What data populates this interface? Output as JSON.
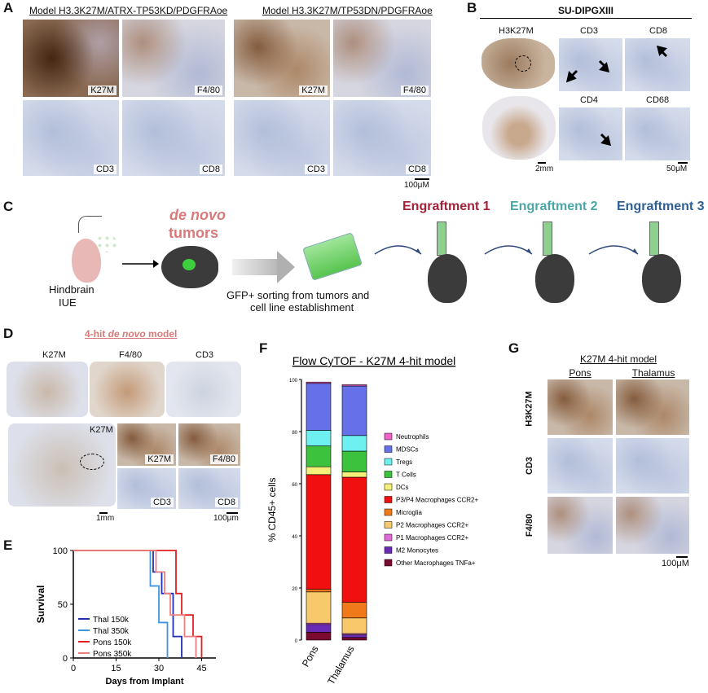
{
  "panel_labels": {
    "A": "A",
    "B": "B",
    "C": "C",
    "D": "D",
    "E": "E",
    "F": "F",
    "G": "G"
  },
  "panelA": {
    "model1_title": "Model H3.3K27M/ATRX-TP53KD/PDGFRAoe",
    "model2_title": "Model H3.3K27M/TP53DN/PDGFRAoe",
    "tiles": [
      "K27M",
      "F4/80",
      "CD3",
      "CD8",
      "K27M",
      "F4/80",
      "CD3",
      "CD8"
    ],
    "scale": "100μM"
  },
  "panelB": {
    "title": "SU-DIPGXIII",
    "labels": {
      "h3k27m": "H3K27M",
      "cd3": "CD3",
      "cd8": "CD8",
      "cd4": "CD4",
      "cd68": "CD68"
    },
    "scale_left": "2mm",
    "scale_right": "50μM"
  },
  "panelC": {
    "hindbrain": "Hindbrain",
    "iue": "IUE",
    "de_novo": "de novo",
    "tumors": "tumors",
    "sorting_line1": "GFP+ sorting from tumors and",
    "sorting_line2": "cell line establishment",
    "engraft1": "Engraftment 1",
    "engraft2": "Engraftment 2",
    "engraft3": "Engraftment 3",
    "colors": {
      "engraft1": "#a3213a",
      "engraft2": "#4aa7a6",
      "engraft3": "#2f5f95",
      "de_novo": "#d97a7a"
    }
  },
  "panelD": {
    "title_prefix": "4-hit ",
    "title_italic": "de novo",
    "title_suffix": " model",
    "top_labels": [
      "K27M",
      "F4/80",
      "CD3"
    ],
    "bottom_big_label": "K27M",
    "tiles": [
      "K27M",
      "F4/80",
      "CD3",
      "CD8"
    ],
    "scale_left": "1mm",
    "scale_right": "100μm"
  },
  "panelG": {
    "title": "K27M 4-hit model",
    "col_labels": [
      "Pons",
      "Thalamus"
    ],
    "row_labels": [
      "H3K27M",
      "CD3",
      "F4/80"
    ],
    "scale": "100μM"
  },
  "chart_data": [
    {
      "type": "line",
      "title": "",
      "xlabel": "Days from Implant",
      "ylabel": "Survival",
      "xlim": [
        0,
        50
      ],
      "ylim": [
        0,
        100
      ],
      "xticks": [
        0,
        15,
        30,
        45
      ],
      "yticks": [
        0,
        50,
        100
      ],
      "legend_position": "left",
      "series": [
        {
          "name": "Thal 150k",
          "color": "#1f2fb3",
          "x": [
            0,
            28,
            28,
            31,
            31,
            35,
            35,
            38,
            38
          ],
          "y": [
            100,
            100,
            80,
            80,
            60,
            60,
            20,
            20,
            0
          ]
        },
        {
          "name": "Thal 350k",
          "color": "#3d96e0",
          "x": [
            0,
            27,
            27,
            30,
            30,
            33,
            33
          ],
          "y": [
            100,
            100,
            67,
            67,
            33,
            33,
            0
          ]
        },
        {
          "name": "Pons 150k",
          "color": "#e02020",
          "x": [
            0,
            36,
            36,
            38,
            38,
            42,
            42,
            45,
            45
          ],
          "y": [
            100,
            100,
            60,
            60,
            40,
            40,
            20,
            20,
            0
          ]
        },
        {
          "name": "Pons 350k",
          "color": "#f08080",
          "x": [
            0,
            29,
            29,
            32,
            32,
            34,
            34,
            39,
            39,
            43,
            43
          ],
          "y": [
            100,
            100,
            80,
            80,
            60,
            60,
            40,
            40,
            20,
            20,
            0
          ]
        }
      ]
    },
    {
      "type": "bar",
      "title": "Flow CyTOF - K27M 4-hit model",
      "xlabel": "",
      "ylabel": "% CD45+ cells",
      "ylim": [
        0,
        100
      ],
      "yticks": [
        0,
        20,
        40,
        60,
        80,
        100
      ],
      "categories": [
        "Pons",
        "Thalamus"
      ],
      "legend_position": "right",
      "series": [
        {
          "name": "Other Macrophages TNFa+",
          "color": "#7a0a30",
          "values": [
            3,
            1
          ]
        },
        {
          "name": "M2 Monocytes",
          "color": "#6a2bb5",
          "values": [
            3,
            1
          ]
        },
        {
          "name": "P1 Macrophages CCR2+",
          "color": "#e26ad8",
          "values": [
            0.5,
            0.5
          ]
        },
        {
          "name": "P2 Macrophages CCR2+",
          "color": "#f8c96b",
          "values": [
            12,
            6
          ]
        },
        {
          "name": "Microglia",
          "color": "#f07a1a",
          "values": [
            1,
            6
          ]
        },
        {
          "name": "P3/P4 Macrophages CCR2+",
          "color": "#f01010",
          "values": [
            44,
            48
          ]
        },
        {
          "name": "DCs",
          "color": "#f5f07a",
          "values": [
            3,
            2
          ]
        },
        {
          "name": "T Cells",
          "color": "#3cc23c",
          "values": [
            8,
            8
          ]
        },
        {
          "name": "Tregs",
          "color": "#6ff0f0",
          "values": [
            6,
            6
          ]
        },
        {
          "name": "MDSCs",
          "color": "#6670e8",
          "values": [
            18,
            19
          ]
        },
        {
          "name": "Neutrophils",
          "color": "#f060c8",
          "values": [
            0.5,
            0.5
          ]
        }
      ]
    }
  ]
}
